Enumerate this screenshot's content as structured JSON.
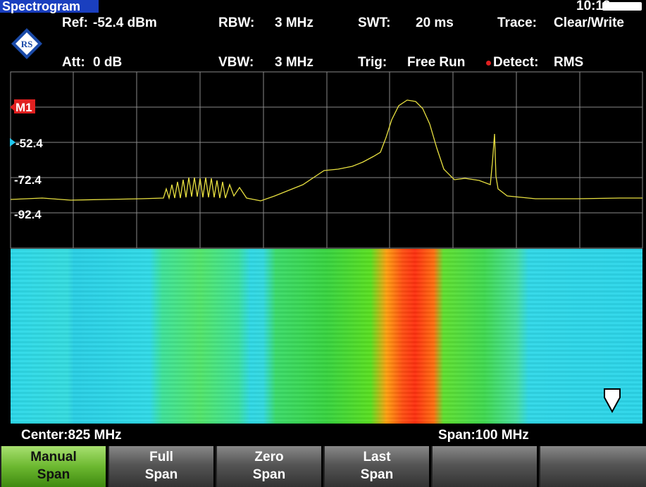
{
  "title_bar": {
    "title": "Spectrogram",
    "time": "10:19"
  },
  "settings": {
    "row1": [
      {
        "label": "Ref:",
        "value": "-52.4 dBm"
      },
      {
        "label": "RBW:",
        "value": "3 MHz"
      },
      {
        "label": "SWT:",
        "value": "20 ms"
      },
      {
        "label": "Trace:",
        "value": "Clear/Write"
      }
    ],
    "row2": [
      {
        "label": "Att:",
        "value": "0 dB"
      },
      {
        "label": "VBW:",
        "value": "3 MHz"
      },
      {
        "label": "Trig:",
        "value": "Free Run"
      },
      {
        "label": "Detect:",
        "value": "RMS"
      }
    ]
  },
  "plot": {
    "marker": "M1",
    "level_labels": [
      "-52.4",
      "-72.4",
      "-92.4"
    ]
  },
  "footer": {
    "center": "Center:825 MHz",
    "span": "Span:100 MHz"
  },
  "softkeys": [
    {
      "lines": [
        "Manual",
        "Span"
      ]
    },
    {
      "lines": [
        "Full",
        "Span"
      ]
    },
    {
      "lines": [
        "Zero",
        "Span"
      ]
    },
    {
      "lines": [
        "Last",
        "Span"
      ]
    }
  ]
}
